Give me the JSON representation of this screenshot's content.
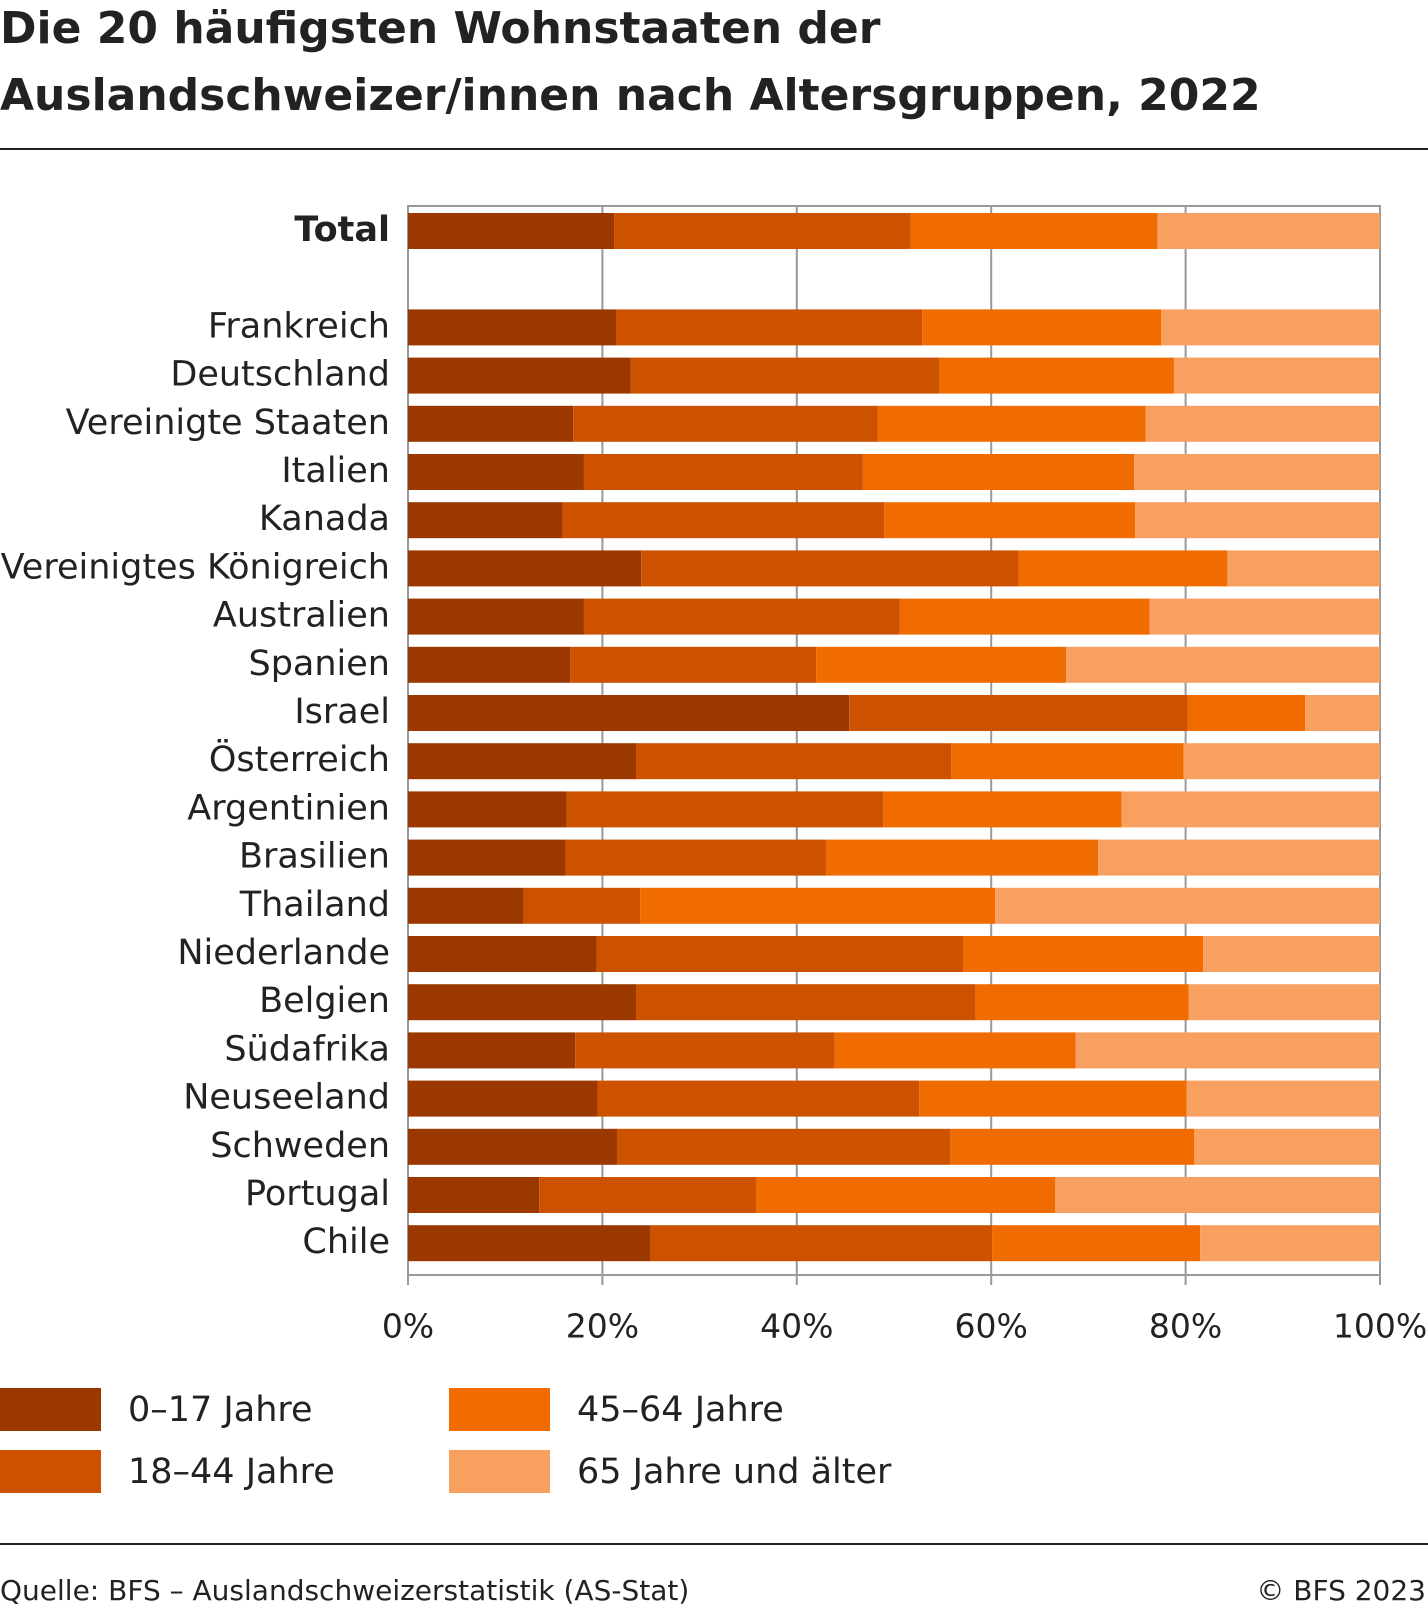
{
  "chart_data": {
    "type": "stacked_bar_horizontal",
    "title": "Die 20 häufigsten Wohnstaaten der Auslandschweizer/innen nach Altersgruppen, 2022",
    "title_lines": [
      "Die 20 häufigsten Wohnstaaten der",
      "Auslandschweizer/innen nach Altersgruppen, 2022"
    ],
    "categories": [
      "Total",
      "Frankreich",
      "Deutschland",
      "Vereinigte Staaten",
      "Italien",
      "Kanada",
      "Vereinigtes Königreich",
      "Australien",
      "Spanien",
      "Israel",
      "Österreich",
      "Argentinien",
      "Brasilien",
      "Thailand",
      "Niederlande",
      "Belgien",
      "Südafrika",
      "Neuseeland",
      "Schweden",
      "Portugal",
      "Chile"
    ],
    "series": [
      {
        "name": "0–17 Jahre",
        "color": "#9a3800",
        "values": [
          21.2,
          21.4,
          22.9,
          17.0,
          18.1,
          15.9,
          24.0,
          18.1,
          16.7,
          45.4,
          23.5,
          16.3,
          16.2,
          11.9,
          19.4,
          23.5,
          17.2,
          19.5,
          21.5,
          13.5,
          24.9
        ]
      },
      {
        "name": "18–44 Jahre",
        "color": "#cc5200",
        "values": [
          30.5,
          31.5,
          31.8,
          31.3,
          28.7,
          33.1,
          38.8,
          32.5,
          25.3,
          34.8,
          32.4,
          32.6,
          26.8,
          12.0,
          37.7,
          34.9,
          26.7,
          33.1,
          34.3,
          22.3,
          35.2
        ]
      },
      {
        "name": "45–64 Jahre",
        "color": "#f06c00",
        "values": [
          25.4,
          24.6,
          24.1,
          27.6,
          27.9,
          25.8,
          21.5,
          25.7,
          25.7,
          12.1,
          23.9,
          24.5,
          28.0,
          36.5,
          24.7,
          21.9,
          24.8,
          27.5,
          25.1,
          30.8,
          21.4
        ]
      },
      {
        "name": "65 Jahre und älter",
        "color": "#f8a060",
        "values": [
          22.9,
          22.5,
          21.2,
          24.1,
          25.3,
          25.2,
          15.7,
          23.7,
          32.3,
          7.7,
          20.2,
          26.6,
          29.0,
          39.6,
          18.2,
          19.7,
          31.3,
          19.9,
          19.1,
          33.4,
          18.5
        ]
      }
    ],
    "xlim": [
      0,
      100
    ],
    "xticks": [
      {
        "value": 0,
        "label": "0%"
      },
      {
        "value": 20,
        "label": "20%"
      },
      {
        "value": 40,
        "label": "40%"
      },
      {
        "value": 60,
        "label": "60%"
      },
      {
        "value": 80,
        "label": "80%"
      },
      {
        "value": 100,
        "label": "100%"
      }
    ],
    "grid": true,
    "source": "Quelle: BFS – Auslandschweizerstatistik (AS-Stat)",
    "copyright": "© BFS 2023"
  }
}
